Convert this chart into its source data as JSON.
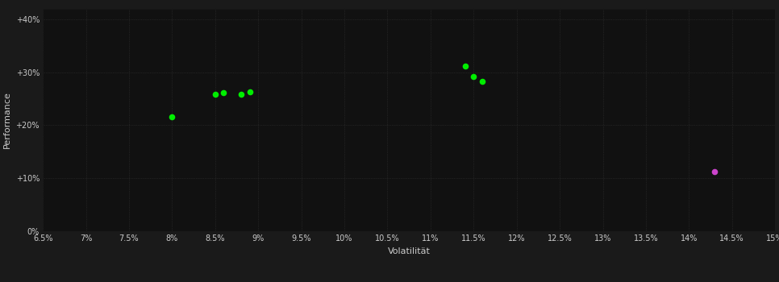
{
  "background_color": "#1a1a1a",
  "plot_bg_color": "#111111",
  "grid_color": "#333333",
  "text_color": "#cccccc",
  "xlabel": "Volatilität",
  "ylabel": "Performance",
  "xlim": [
    0.065,
    0.15
  ],
  "ylim": [
    0.0,
    0.42
  ],
  "xticks": [
    0.065,
    0.07,
    0.075,
    0.08,
    0.085,
    0.09,
    0.095,
    0.1,
    0.105,
    0.11,
    0.115,
    0.12,
    0.125,
    0.13,
    0.135,
    0.14,
    0.145,
    0.15
  ],
  "yticks": [
    0.0,
    0.1,
    0.2,
    0.3,
    0.4
  ],
  "ytick_labels": [
    "0%",
    "+10%",
    "+20%",
    "+30%",
    "+40%"
  ],
  "green_points": [
    [
      0.08,
      0.215
    ],
    [
      0.085,
      0.258
    ],
    [
      0.086,
      0.262
    ],
    [
      0.088,
      0.258
    ],
    [
      0.089,
      0.263
    ],
    [
      0.114,
      0.312
    ],
    [
      0.115,
      0.291
    ],
    [
      0.116,
      0.282
    ]
  ],
  "magenta_points": [
    [
      0.143,
      0.112
    ]
  ],
  "green_color": "#00ee00",
  "magenta_color": "#cc44cc",
  "marker_size": 30,
  "axis_fontsize": 8,
  "tick_fontsize": 7
}
